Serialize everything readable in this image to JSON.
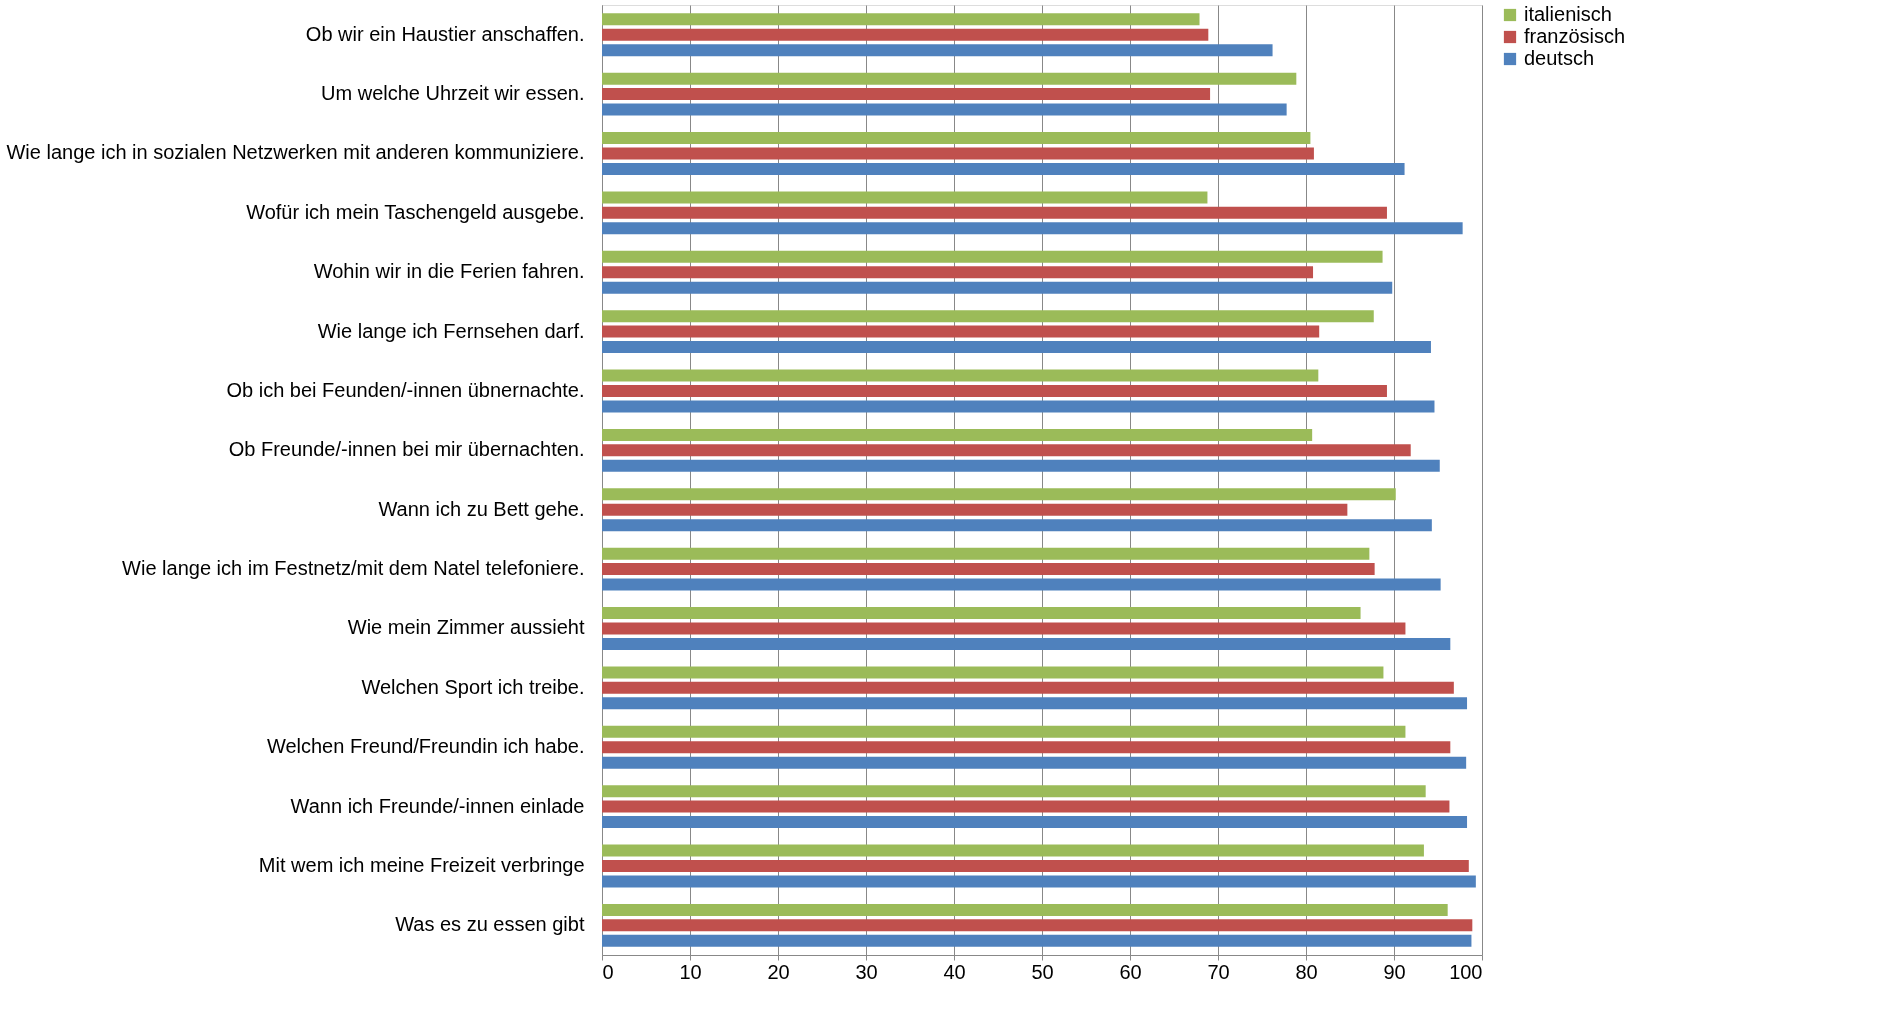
{
  "chart_data": {
    "type": "bar",
    "orientation": "horizontal",
    "categories": [
      "Ob wir ein Haustier anschaffen.",
      "Um welche Uhrzeit wir essen.",
      "Wie lange ich in sozialen Netzwerken mit anderen kommuniziere.",
      "Wofür ich mein Taschengeld ausgebe.",
      "Wohin wir in die Ferien fahren.",
      "Wie lange ich Fernsehen darf.",
      "Ob ich bei Feunden/-innen übnernachte.",
      "Ob Freunde/-innen bei mir übernachten.",
      "Wann ich zu Bett gehe.",
      "Wie lange ich im Festnetz/mit dem Natel telefoniere.",
      "Wie mein Zimmer aussieht",
      "Welchen Sport ich treibe.",
      "Welchen Freund/Freundin ich habe.",
      "Wann ich Freunde/-innen einlade",
      "Mit wem ich meine Freizeit verbringe",
      "Was es zu essen gibt"
    ],
    "series": [
      {
        "name": "italienisch",
        "color": "#9bbb59",
        "values": [
          67.9,
          78.9,
          80.5,
          68.8,
          88.7,
          87.7,
          81.4,
          80.7,
          90.2,
          87.2,
          86.2,
          88.8,
          91.3,
          93.6,
          93.4,
          96.1
        ]
      },
      {
        "name": "französisch",
        "color": "#c0504d",
        "values": [
          68.9,
          69.1,
          80.9,
          89.2,
          80.8,
          81.5,
          89.2,
          91.9,
          84.7,
          87.8,
          91.3,
          96.8,
          96.4,
          96.3,
          98.5,
          98.9
        ]
      },
      {
        "name": "deutsch",
        "color": "#4f81bd",
        "values": [
          76.2,
          77.8,
          91.2,
          97.8,
          89.8,
          94.2,
          94.6,
          95.2,
          94.3,
          95.3,
          96.4,
          98.3,
          98.2,
          98.3,
          99.3,
          98.8
        ]
      }
    ],
    "xlim": [
      0,
      100
    ],
    "xticks": [
      0,
      10,
      20,
      30,
      40,
      50,
      60,
      70,
      80,
      90,
      100
    ],
    "grid": "x",
    "legend": "right"
  }
}
